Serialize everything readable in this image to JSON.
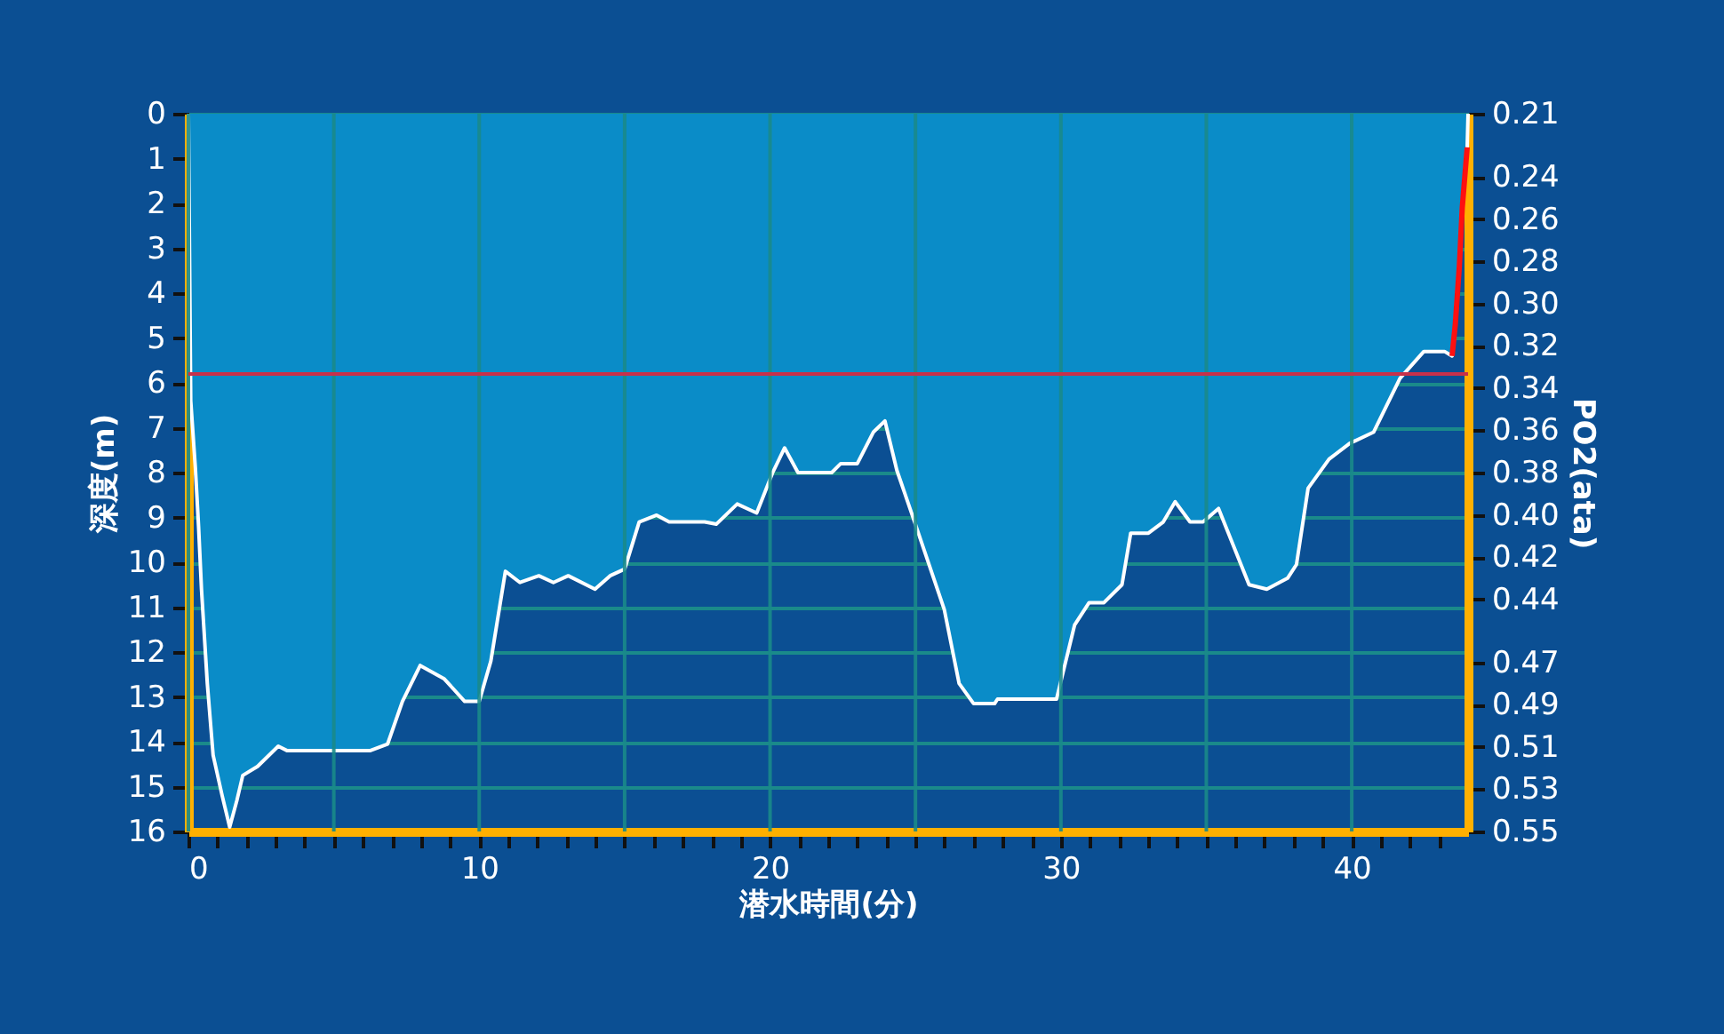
{
  "chart_data": {
    "type": "area",
    "xlabel": "潜水時間(分)",
    "ylabel": "深度(m)",
    "y2label": "PO2(ata)",
    "series": [
      {
        "color": "#0a8cc8",
        "x": [
          0,
          0.08,
          0.24,
          0.35,
          0.45,
          0.65,
          0.85,
          1.16,
          1.42,
          1.67,
          1.87,
          2.38,
          3.09,
          3.4,
          6.24,
          6.85,
          7.36,
          7.97,
          8.8,
          9.5,
          10.0,
          10.4,
          10.9,
          11.4,
          12.05,
          12.55,
          13.06,
          13.98,
          14.5,
          15.0,
          15.5,
          16.1,
          16.53,
          17.75,
          18.15,
          18.87,
          19.54,
          20.09,
          20.5,
          20.96,
          22.12,
          22.43,
          23.0,
          23.55,
          23.95,
          24.36,
          24.97,
          25.99,
          26.5,
          27.0,
          27.72,
          27.82,
          29.85,
          30.47,
          30.97,
          31.48,
          32.1,
          32.4,
          33.01,
          33.52,
          33.93,
          34.44,
          34.89,
          35.42,
          36.47,
          37.08,
          37.8,
          38.1,
          38.5,
          39.22,
          39.93,
          40.75,
          41.66,
          42.48,
          43.19,
          43.45,
          43.56,
          43.7,
          43.8,
          43.97,
          44.0
        ],
        "values": [
          0,
          6.4,
          7.9,
          9.2,
          10.6,
          12.7,
          14.3,
          15.2,
          15.9,
          15.3,
          14.75,
          14.55,
          14.1,
          14.2,
          14.2,
          14.05,
          13.1,
          12.3,
          12.6,
          13.1,
          13.1,
          12.2,
          10.2,
          10.45,
          10.3,
          10.45,
          10.3,
          10.6,
          10.3,
          10.15,
          9.1,
          8.95,
          9.1,
          9.1,
          9.15,
          8.7,
          8.9,
          8.0,
          7.45,
          8.0,
          8.0,
          7.8,
          7.8,
          7.1,
          6.85,
          7.95,
          9.1,
          11.05,
          12.7,
          13.15,
          13.15,
          13.05,
          13.05,
          11.4,
          10.9,
          10.9,
          10.5,
          9.35,
          9.35,
          9.1,
          8.65,
          9.1,
          9.1,
          8.8,
          10.5,
          10.6,
          10.35,
          10.05,
          8.35,
          7.7,
          7.35,
          7.1,
          5.9,
          5.3,
          5.3,
          5.4,
          4.7,
          3.4,
          2.1,
          0.75,
          0
        ]
      },
      {
        "type": "line",
        "color": "#ff1010",
        "x": [
          43.45,
          43.56,
          43.7,
          43.8,
          43.97
        ],
        "values": [
          5.4,
          4.7,
          3.4,
          2.1,
          0.75
        ]
      }
    ],
    "xlim": [
      0,
      44
    ],
    "xticks": [
      0,
      {
        "value": 1,
        "label": null
      },
      {
        "value": 2,
        "label": null
      },
      {
        "value": 3,
        "label": null
      },
      {
        "value": 4,
        "label": null
      },
      {
        "value": 5,
        "label": null
      },
      {
        "value": 6,
        "label": null
      },
      {
        "value": 7,
        "label": null
      },
      {
        "value": 8,
        "label": null
      },
      {
        "value": 9,
        "label": null
      },
      10,
      {
        "value": 11,
        "label": null
      },
      {
        "value": 12,
        "label": null
      },
      {
        "value": 13,
        "label": null
      },
      {
        "value": 14,
        "label": null
      },
      {
        "value": 15,
        "label": null
      },
      {
        "value": 16,
        "label": null
      },
      {
        "value": 17,
        "label": null
      },
      {
        "value": 18,
        "label": null
      },
      {
        "value": 19,
        "label": null
      },
      20,
      {
        "value": 21,
        "label": null
      },
      {
        "value": 22,
        "label": null
      },
      {
        "value": 23,
        "label": null
      },
      {
        "value": 24,
        "label": null
      },
      {
        "value": 25,
        "label": null
      },
      {
        "value": 26,
        "label": null
      },
      {
        "value": 27,
        "label": null
      },
      {
        "value": 28,
        "label": null
      },
      {
        "value": 29,
        "label": null
      },
      30,
      {
        "value": 31,
        "label": null
      },
      {
        "value": 32,
        "label": null
      },
      {
        "value": 33,
        "label": null
      },
      {
        "value": 34,
        "label": null
      },
      {
        "value": 35,
        "label": null
      },
      {
        "value": 36,
        "label": null
      },
      {
        "value": 37,
        "label": null
      },
      {
        "value": 38,
        "label": null
      },
      {
        "value": 39,
        "label": null
      },
      40,
      {
        "value": 41,
        "label": null
      },
      {
        "value": 42,
        "label": null
      },
      {
        "value": 43,
        "label": null
      }
    ],
    "ylim": [
      16,
      0
    ],
    "yticks": [
      0,
      1,
      2,
      3,
      4,
      5,
      6,
      7,
      8,
      9,
      10,
      11,
      12,
      13,
      14,
      15,
      16
    ],
    "y2lim": [
      0.55,
      0.21
    ],
    "y2ticks": [
      0.21,
      0.24,
      0.26,
      0.28,
      {
        "value": 0.3,
        "label": "0.30"
      },
      0.32,
      0.34,
      0.36,
      0.38,
      {
        "value": 0.4,
        "label": "0.40"
      },
      0.42,
      0.44,
      0.47,
      0.49,
      0.51,
      0.53,
      0.55
    ],
    "ref_lines": [
      {
        "axis": "y",
        "value": 5.8,
        "color": "#c8304a"
      }
    ],
    "grid": true
  }
}
